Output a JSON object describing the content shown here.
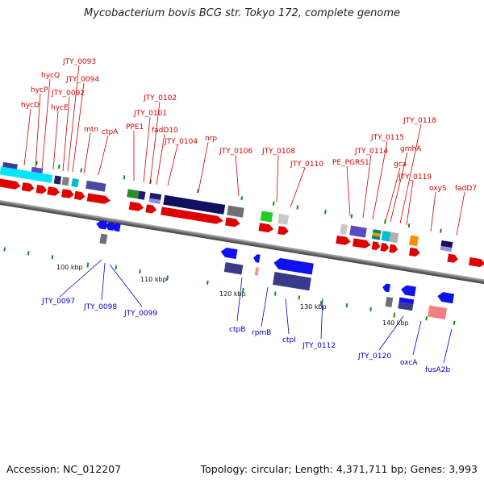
{
  "title": "Mycobacterium bovis BCG str. Tokyo 172, complete genome",
  "footer": {
    "accession": "Accession: NC_012207",
    "summary": "Topology: circular; Length: 4,371,711 bp; Genes: 3,993"
  },
  "colors": {
    "forward_label": "#d40000",
    "reverse_label": "#0000d0",
    "backbone": "#808080"
  },
  "scale_labels": [
    "100 kbp",
    "110 kbp",
    "120 kbp",
    "130 kbp",
    "140 kbp"
  ],
  "forward_genes": [
    "hycD",
    "hycP",
    "hycQ",
    "hycE",
    "JTY_0092",
    "JTY_0093",
    "JTY_0094",
    "mtn",
    "ctpA",
    "PPE1",
    "JTY_0101",
    "JTY_0102",
    "fadD10",
    "JTY_0104",
    "nrp",
    "JTY_0106",
    "JTY_0108",
    "JTY_0110",
    "PE_PGRS1",
    "JTY_0114",
    "JTY_0115",
    "gca",
    "gmhA",
    "JTY_0118",
    "JTY_0119",
    "oxyS",
    "fadD7"
  ],
  "reverse_genes": [
    "JTY_0097",
    "JTY_0098",
    "JTY_0099",
    "ctpB",
    "rpmB",
    "ctpI",
    "JTY_0112",
    "JTY_0120",
    "oxcA",
    "fusA2b"
  ]
}
